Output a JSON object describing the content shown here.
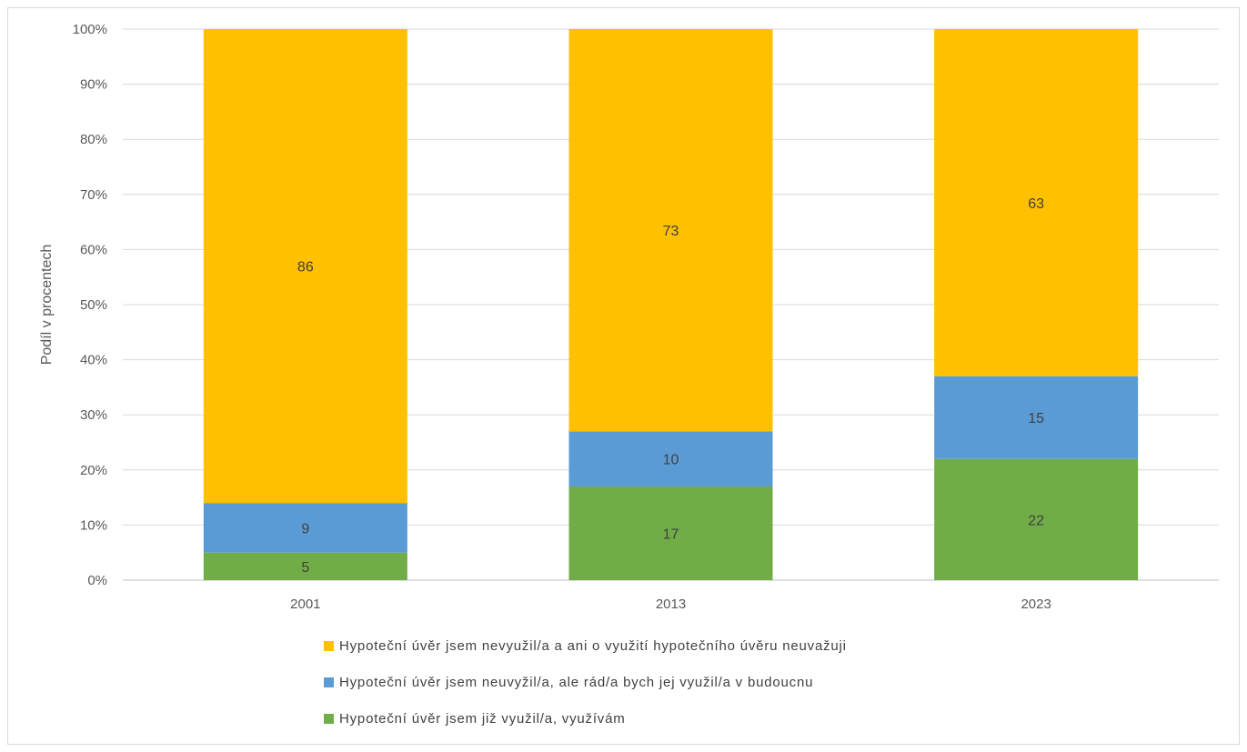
{
  "chart_data": {
    "type": "bar",
    "stacked": true,
    "categories": [
      "2001",
      "2013",
      "2023"
    ],
    "series": [
      {
        "name": "Hypoteční úvěr jsem již využil/a, využívám",
        "values": [
          5,
          17,
          22
        ],
        "color": "#70ad47"
      },
      {
        "name": "Hypoteční úvěr jsem neuvyžil/a, ale rád/a bych jej využil/a v budoucnu",
        "values": [
          9,
          10,
          15
        ],
        "color": "#5b9bd5"
      },
      {
        "name": "Hypoteční úvěr jsem nevyužil/a a ani o využití hypotečního úvěru neuvažuji",
        "values": [
          86,
          73,
          63
        ],
        "color": "#ffc000"
      }
    ],
    "ylabel": "Podíl v procentech",
    "ylim": [
      0,
      100
    ],
    "yticks": [
      "0%",
      "10%",
      "20%",
      "30%",
      "40%",
      "50%",
      "60%",
      "70%",
      "80%",
      "90%",
      "100%"
    ],
    "grid": true,
    "legend_position": "bottom",
    "legend_order": [
      2,
      1,
      0
    ]
  }
}
